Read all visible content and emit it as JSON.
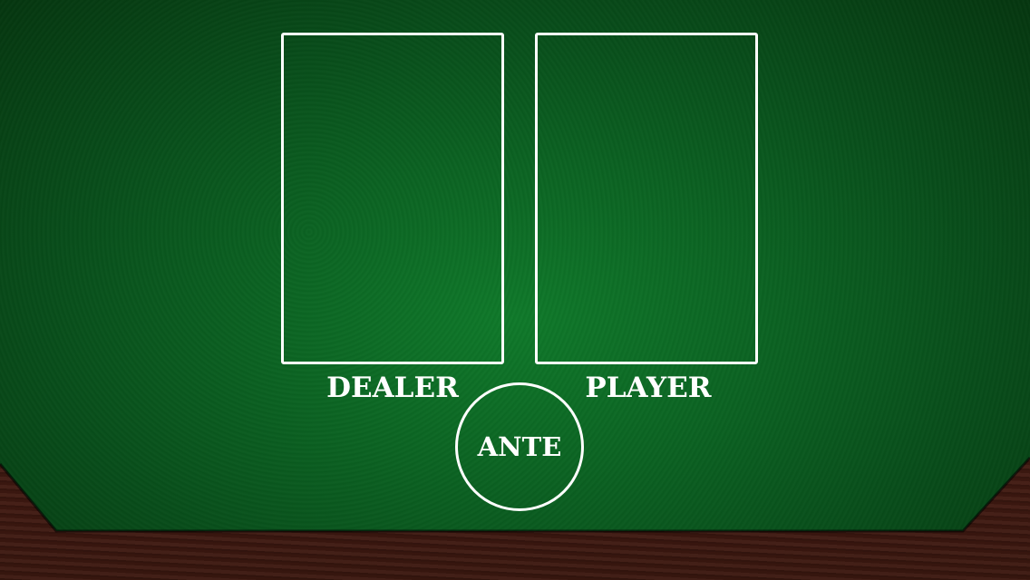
{
  "table": {
    "felt_color": "#0b6322",
    "wood_color": "#4a1e15",
    "line_color": "#ffffff"
  },
  "zones": {
    "dealer_label": "DEALER",
    "player_label": "PLAYER",
    "ante_label": "ANTE"
  }
}
